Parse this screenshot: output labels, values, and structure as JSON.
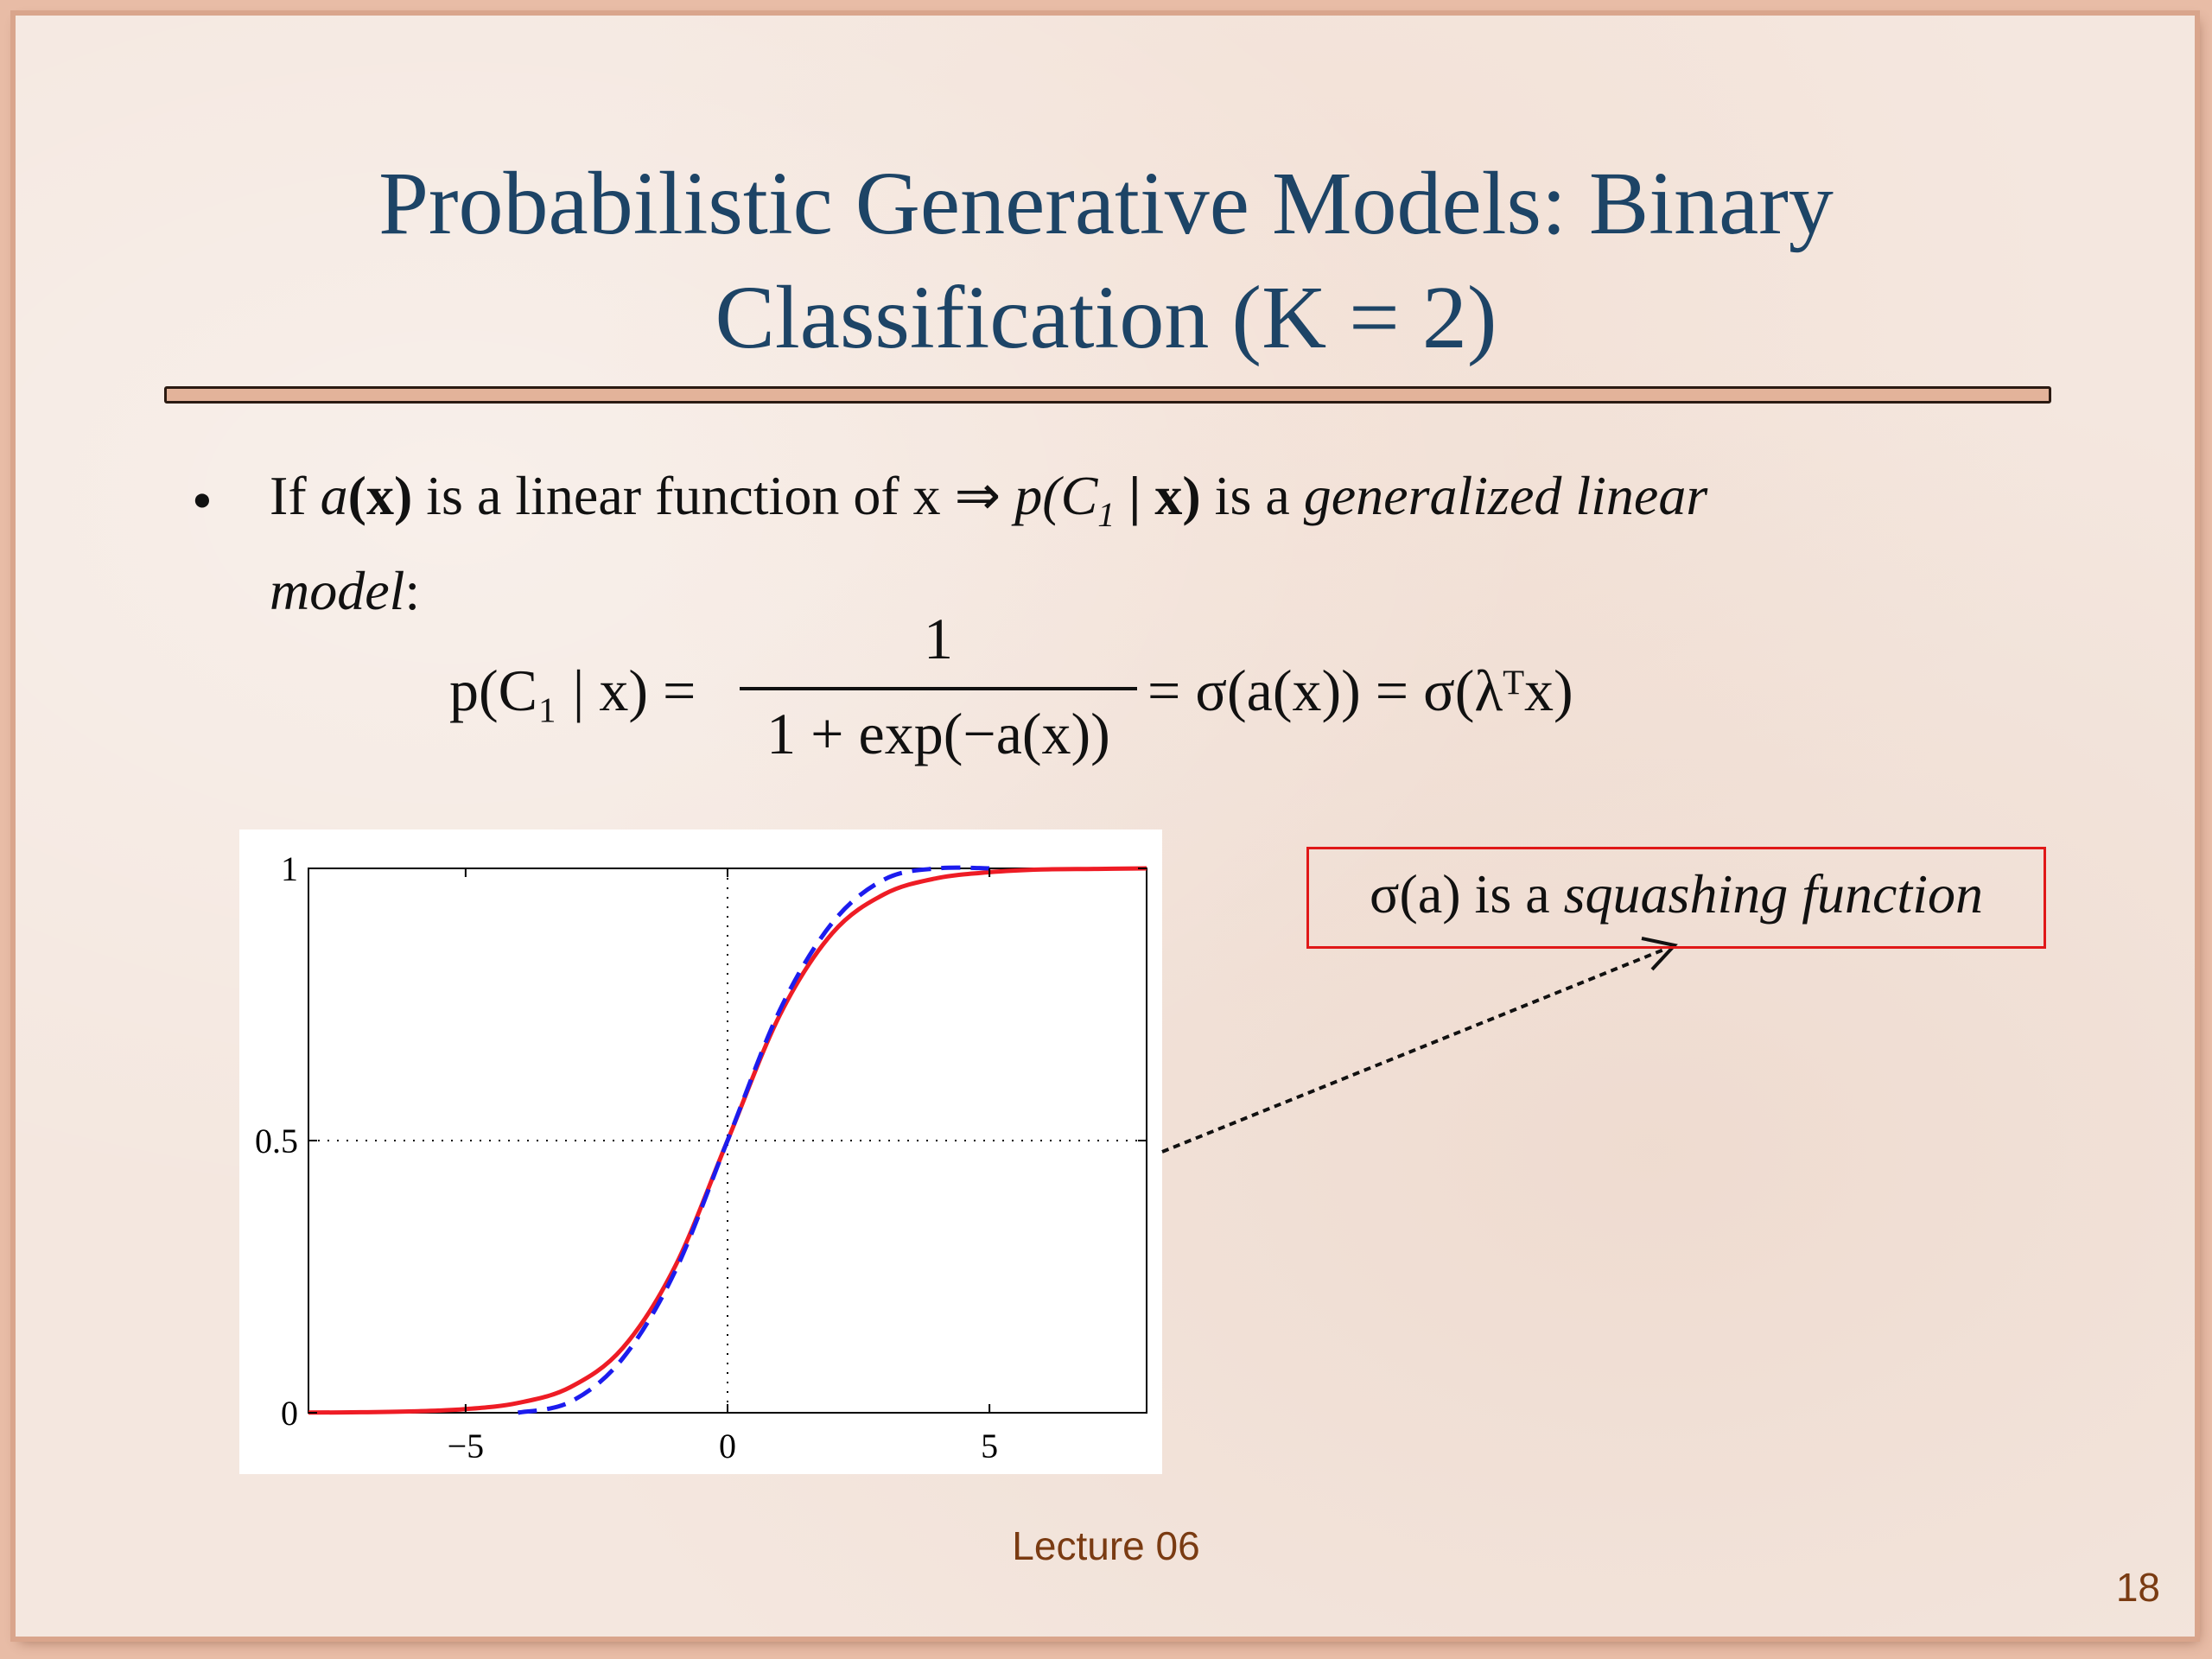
{
  "slide": {
    "title_line1": "Probabilistic Generative Models: Binary",
    "title_line2": "Classification (K = 2)",
    "bullet_symbol": "•",
    "footer": "Lecture 06",
    "page_number": "18"
  },
  "bullet": {
    "line1_pre": "If ",
    "line1_a": "a",
    "line1_x": "(x)",
    "line1_mid": " is a linear function of x ⇒ ",
    "line1_p": "p(C",
    "line1_sub": "1",
    "line1_px": " | x)",
    "line1_post": " is a ",
    "line1_italic": "generalized linear",
    "line2_italic": "model",
    "line2_post": ":"
  },
  "equation": {
    "lhs": "p(C₁ | x) =",
    "numerator": "1",
    "denominator": "1 + exp(−a(x))",
    "rhs": "= σ(a(x)) = σ(λᵀx)"
  },
  "callout": {
    "sigma": "σ(a)",
    "text": " is a ",
    "italic": "squashing function"
  },
  "chart_data": {
    "type": "line",
    "title": "",
    "xlabel": "",
    "ylabel": "",
    "xlim": [
      -8,
      8
    ],
    "ylim": [
      0,
      1
    ],
    "x_ticks": [
      -5,
      0,
      5
    ],
    "y_ticks": [
      0,
      0.5,
      1
    ],
    "x_tick_labels": [
      "−5",
      "0",
      "5"
    ],
    "y_tick_labels": [
      "0",
      "0.5",
      "1"
    ],
    "reference_lines": {
      "x": 0,
      "y": 0.5,
      "style": "dotted"
    },
    "series": [
      {
        "color": "#ee1c25",
        "style": "solid",
        "x": [
          -8,
          -7,
          -6,
          -5,
          -4,
          -3,
          -2,
          -1,
          0,
          1,
          2,
          3,
          4,
          5,
          6,
          7,
          8
        ],
        "y": [
          0.0003,
          0.0009,
          0.0025,
          0.0067,
          0.018,
          0.047,
          0.119,
          0.269,
          0.5,
          0.731,
          0.881,
          0.953,
          0.982,
          0.993,
          0.998,
          0.999,
          1.0
        ]
      },
      {
        "color": "#1c1cee",
        "style": "dashed",
        "x": [
          -4,
          -3,
          -2,
          -1,
          0,
          1,
          2,
          3,
          4,
          5
        ],
        "y": [
          0.0,
          0.02,
          0.1,
          0.26,
          0.5,
          0.74,
          0.9,
          0.98,
          1.0,
          1.0
        ]
      }
    ],
    "grid": false
  },
  "colors": {
    "title": "#1d4466",
    "accent_rule": "#e3b39a",
    "callout_border": "#e01818",
    "footer": "#7a3b12"
  }
}
